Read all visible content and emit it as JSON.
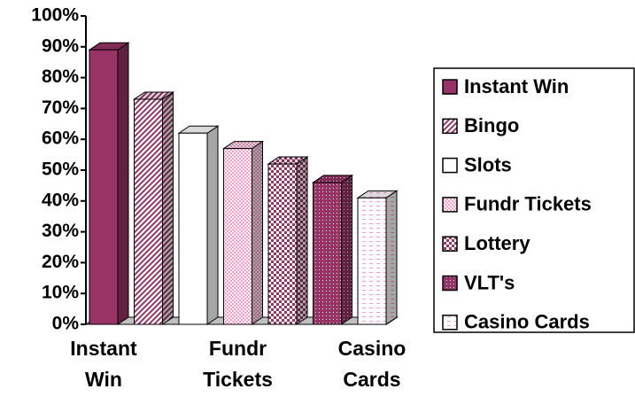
{
  "chart_data": {
    "type": "bar3d",
    "categories": [
      "Instant Win",
      null,
      null,
      "Fundr Tickets",
      null,
      null,
      "Casino Cards"
    ],
    "values": [
      89,
      73,
      62,
      57,
      52,
      46,
      41
    ],
    "legend": [
      "Instant Win",
      "Bingo",
      "Slots",
      "Fundr Tickets",
      "Lottery",
      "VLT's",
      "Casino Cards"
    ],
    "colors": [
      "#993366",
      "#993366",
      "#ffffff",
      "#ff99cc",
      "#993366",
      "#993366",
      "#ff99cc"
    ],
    "patterns": [
      "solid",
      "diagonal",
      "solid",
      "dots",
      "checker",
      "fine-dots",
      "dashes"
    ],
    "ylim": [
      0,
      100
    ],
    "yticks": [
      {
        "value": 0,
        "label": "0%"
      },
      {
        "value": 10,
        "label": "10%"
      },
      {
        "value": 20,
        "label": "20%"
      },
      {
        "value": 30,
        "label": "30%"
      },
      {
        "value": 40,
        "label": "40%"
      },
      {
        "value": 50,
        "label": "50%"
      },
      {
        "value": 60,
        "label": "60%"
      },
      {
        "value": 70,
        "label": "70%"
      },
      {
        "value": 80,
        "label": "80%"
      },
      {
        "value": 90,
        "label": "90%"
      },
      {
        "value": 100,
        "label": "100%"
      }
    ],
    "legend_position": "right"
  }
}
